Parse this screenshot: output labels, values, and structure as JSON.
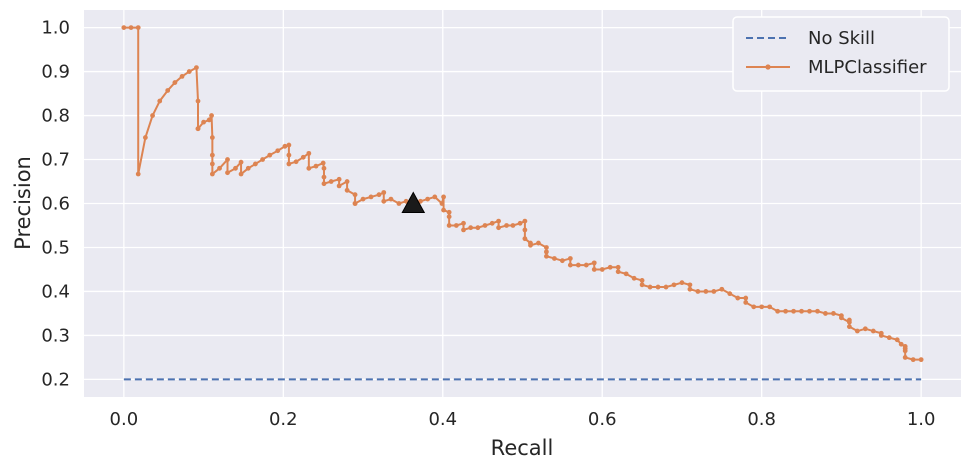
{
  "chart_data": {
    "type": "line",
    "title": "",
    "xlabel": "Recall",
    "ylabel": "Precision",
    "xlim": [
      -0.05,
      1.05
    ],
    "ylim": [
      0.16,
      1.04
    ],
    "xticks": [
      0.0,
      0.2,
      0.4,
      0.6,
      0.8,
      1.0
    ],
    "xtick_labels": [
      "0.0",
      "0.2",
      "0.4",
      "0.6",
      "0.8",
      "1.0"
    ],
    "yticks": [
      0.2,
      0.3,
      0.4,
      0.5,
      0.6,
      0.7,
      0.8,
      0.9,
      1.0
    ],
    "ytick_labels": [
      "0.2",
      "0.3",
      "0.4",
      "0.5",
      "0.6",
      "0.7",
      "0.8",
      "0.9",
      "1.0"
    ],
    "grid": true,
    "legend_position": "top-right",
    "colors": {
      "background": "#eaeaf2",
      "grid": "#ffffff",
      "no_skill": "#4c72b0",
      "mlp": "#dd8452",
      "marker": "#000000"
    },
    "series": [
      {
        "name": "No Skill",
        "style": "dashed",
        "color": "#4c72b0",
        "x": [
          0.0,
          1.0
        ],
        "y": [
          0.2,
          0.2
        ]
      },
      {
        "name": "MLPClassifier",
        "style": "line-dots",
        "color": "#dd8452",
        "x": [
          0.0,
          0.009,
          0.018,
          0.018,
          0.027,
          0.036,
          0.045,
          0.055,
          0.064,
          0.073,
          0.082,
          0.091,
          0.093,
          0.093,
          0.093,
          0.1,
          0.107,
          0.11,
          0.111,
          0.111,
          0.111,
          0.111,
          0.12,
          0.13,
          0.13,
          0.14,
          0.147,
          0.147,
          0.156,
          0.165,
          0.174,
          0.183,
          0.193,
          0.202,
          0.207,
          0.207,
          0.207,
          0.216,
          0.225,
          0.232,
          0.232,
          0.241,
          0.25,
          0.251,
          0.251,
          0.251,
          0.26,
          0.27,
          0.27,
          0.28,
          0.28,
          0.29,
          0.29,
          0.29,
          0.3,
          0.31,
          0.32,
          0.326,
          0.326,
          0.335,
          0.345,
          0.354,
          0.363,
          0.372,
          0.381,
          0.39,
          0.399,
          0.401,
          0.401,
          0.408,
          0.408,
          0.408,
          0.417,
          0.426,
          0.426,
          0.435,
          0.444,
          0.453,
          0.462,
          0.47,
          0.47,
          0.48,
          0.488,
          0.497,
          0.503,
          0.503,
          0.503,
          0.51,
          0.51,
          0.52,
          0.53,
          0.53,
          0.53,
          0.54,
          0.55,
          0.56,
          0.56,
          0.57,
          0.58,
          0.59,
          0.59,
          0.6,
          0.61,
          0.62,
          0.62,
          0.63,
          0.64,
          0.65,
          0.65,
          0.66,
          0.67,
          0.68,
          0.69,
          0.7,
          0.71,
          0.71,
          0.72,
          0.73,
          0.74,
          0.75,
          0.76,
          0.77,
          0.78,
          0.78,
          0.79,
          0.8,
          0.81,
          0.82,
          0.83,
          0.84,
          0.85,
          0.86,
          0.87,
          0.88,
          0.89,
          0.9,
          0.9,
          0.91,
          0.91,
          0.91,
          0.92,
          0.93,
          0.94,
          0.95,
          0.95,
          0.96,
          0.97,
          0.975,
          0.98,
          0.98,
          0.98,
          0.98,
          0.99,
          1.0
        ],
        "y": [
          1.0,
          1.0,
          1.0,
          0.667,
          0.75,
          0.8,
          0.833,
          0.857,
          0.875,
          0.889,
          0.9,
          0.909,
          0.833,
          0.77,
          0.77,
          0.785,
          0.79,
          0.8,
          0.75,
          0.71,
          0.69,
          0.667,
          0.68,
          0.7,
          0.67,
          0.68,
          0.694,
          0.667,
          0.68,
          0.69,
          0.7,
          0.71,
          0.72,
          0.73,
          0.733,
          0.71,
          0.69,
          0.695,
          0.705,
          0.714,
          0.68,
          0.685,
          0.692,
          0.68,
          0.66,
          0.645,
          0.65,
          0.655,
          0.64,
          0.65,
          0.63,
          0.62,
          0.6,
          0.6,
          0.61,
          0.615,
          0.62,
          0.625,
          0.605,
          0.61,
          0.6,
          0.605,
          0.6,
          0.605,
          0.61,
          0.615,
          0.6,
          0.615,
          0.585,
          0.58,
          0.57,
          0.55,
          0.55,
          0.555,
          0.54,
          0.545,
          0.545,
          0.55,
          0.555,
          0.56,
          0.545,
          0.55,
          0.55,
          0.555,
          0.56,
          0.54,
          0.52,
          0.51,
          0.505,
          0.51,
          0.5,
          0.49,
          0.48,
          0.475,
          0.47,
          0.475,
          0.46,
          0.46,
          0.46,
          0.465,
          0.45,
          0.45,
          0.455,
          0.455,
          0.445,
          0.44,
          0.43,
          0.425,
          0.415,
          0.41,
          0.41,
          0.41,
          0.415,
          0.42,
          0.415,
          0.405,
          0.4,
          0.4,
          0.4,
          0.405,
          0.395,
          0.385,
          0.385,
          0.375,
          0.365,
          0.365,
          0.365,
          0.355,
          0.355,
          0.355,
          0.355,
          0.355,
          0.355,
          0.35,
          0.35,
          0.345,
          0.34,
          0.33,
          0.335,
          0.32,
          0.31,
          0.315,
          0.31,
          0.305,
          0.3,
          0.295,
          0.29,
          0.28,
          0.275,
          0.27,
          0.265,
          0.25,
          0.245,
          0.245
        ]
      }
    ],
    "marker_point": {
      "x": 0.363,
      "y": 0.6
    },
    "legend": [
      {
        "label": "No Skill"
      },
      {
        "label": "MLPClassifier"
      }
    ]
  }
}
